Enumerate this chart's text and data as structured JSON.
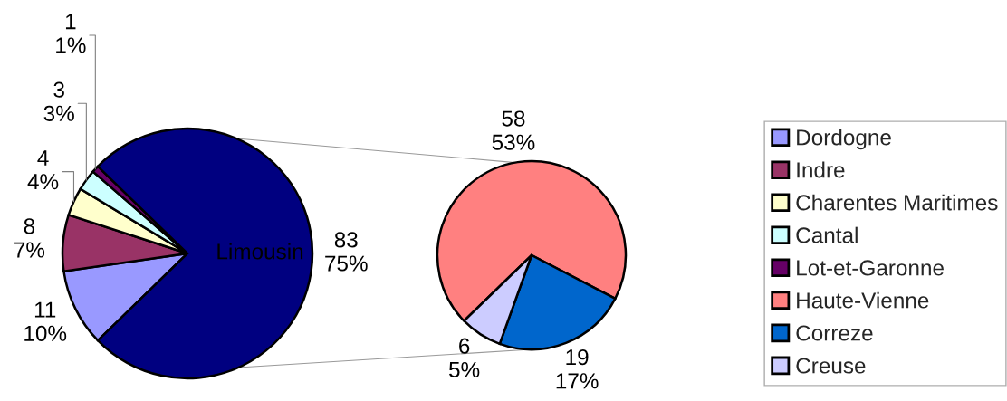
{
  "chart_data": [
    {
      "type": "pie",
      "categories": [
        "Dordogne",
        "Indre",
        "Charentes Maritimes",
        "Cantal",
        "Lot-et-Garonne",
        "Limousin"
      ],
      "values": [
        11,
        8,
        4,
        3,
        1,
        83
      ],
      "colors": [
        "#9999ff",
        "#993366",
        "#ffffcc",
        "#ccffff",
        "#660066",
        "#000080"
      ],
      "value_labels": [
        "11\n10%",
        "8\n7%",
        "4\n4%",
        "3\n3%",
        "1\n1%",
        "83\n75%"
      ],
      "legend": "right"
    },
    {
      "type": "pie",
      "categories": [
        "Haute-Vienne",
        "Correze",
        "Creuse"
      ],
      "values": [
        58,
        19,
        6
      ],
      "colors": [
        "#ff8080",
        "#0066cc",
        "#ccccff"
      ],
      "value_labels": [
        "58\n53%",
        "19\n17%",
        "6\n5%"
      ],
      "legend": "right"
    }
  ]
}
